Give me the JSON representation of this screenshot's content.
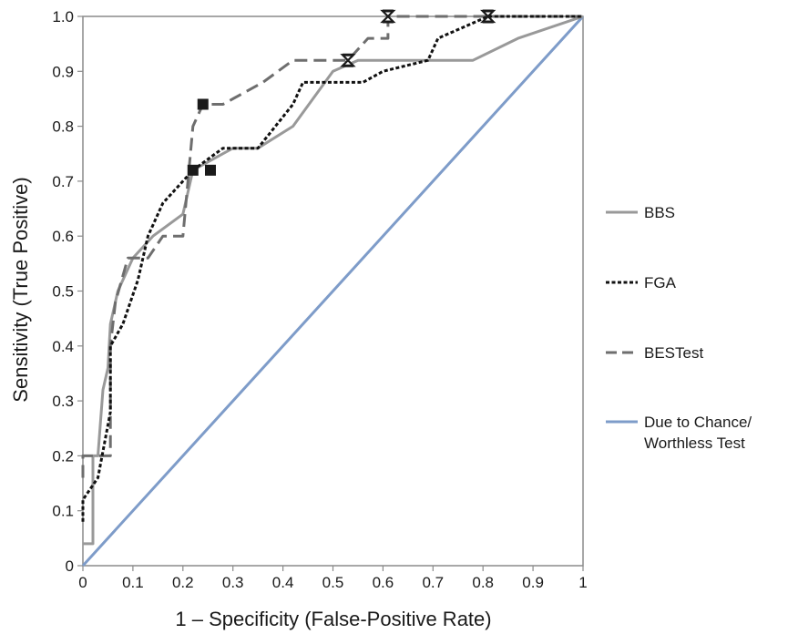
{
  "chart_data": {
    "type": "line",
    "xlabel": "1 – Specificity (False-Positive Rate)",
    "ylabel": "Sensitivity (True Positive)",
    "xlim": [
      0,
      1
    ],
    "ylim": [
      0,
      1
    ],
    "x_ticks": [
      "0",
      "0.1",
      "0.2",
      "0.3",
      "0.4",
      "0.5",
      "0.6",
      "0.7",
      "0.8",
      "0.9",
      "1"
    ],
    "y_ticks": [
      "0",
      "0.1",
      "0.2",
      "0.3",
      "0.4",
      "0.5",
      "0.6",
      "0.7",
      "0.8",
      "0.9",
      "1.0"
    ],
    "grid": false,
    "legend_position": "right",
    "series": [
      {
        "name": "BBS",
        "color": "#999999",
        "style": "solid",
        "points": [
          [
            0.0,
            0.04
          ],
          [
            0.02,
            0.04
          ],
          [
            0.02,
            0.2
          ],
          [
            0.03,
            0.2
          ],
          [
            0.04,
            0.32
          ],
          [
            0.05,
            0.36
          ],
          [
            0.055,
            0.44
          ],
          [
            0.07,
            0.5
          ],
          [
            0.1,
            0.56
          ],
          [
            0.14,
            0.6
          ],
          [
            0.2,
            0.64
          ],
          [
            0.22,
            0.72
          ],
          [
            0.3,
            0.76
          ],
          [
            0.35,
            0.76
          ],
          [
            0.42,
            0.8
          ],
          [
            0.5,
            0.9
          ],
          [
            0.55,
            0.92
          ],
          [
            0.78,
            0.92
          ],
          [
            0.87,
            0.96
          ],
          [
            1.0,
            1.0
          ]
        ]
      },
      {
        "name": "FGA",
        "color": "#111111",
        "style": "dotted",
        "points": [
          [
            0.0,
            0.08
          ],
          [
            0.0,
            0.12
          ],
          [
            0.03,
            0.16
          ],
          [
            0.055,
            0.28
          ],
          [
            0.055,
            0.4
          ],
          [
            0.08,
            0.44
          ],
          [
            0.11,
            0.52
          ],
          [
            0.13,
            0.6
          ],
          [
            0.16,
            0.66
          ],
          [
            0.2,
            0.7
          ],
          [
            0.22,
            0.72
          ],
          [
            0.28,
            0.76
          ],
          [
            0.35,
            0.76
          ],
          [
            0.42,
            0.84
          ],
          [
            0.44,
            0.88
          ],
          [
            0.56,
            0.88
          ],
          [
            0.6,
            0.9
          ],
          [
            0.69,
            0.92
          ],
          [
            0.71,
            0.96
          ],
          [
            0.81,
            1.0
          ],
          [
            1.0,
            1.0
          ]
        ]
      },
      {
        "name": "BESTest",
        "color": "#6e6e6e",
        "style": "dashed",
        "points": [
          [
            0.0,
            0.16
          ],
          [
            0.0,
            0.2
          ],
          [
            0.055,
            0.2
          ],
          [
            0.055,
            0.4
          ],
          [
            0.065,
            0.48
          ],
          [
            0.09,
            0.56
          ],
          [
            0.13,
            0.56
          ],
          [
            0.16,
            0.6
          ],
          [
            0.2,
            0.6
          ],
          [
            0.22,
            0.8
          ],
          [
            0.24,
            0.84
          ],
          [
            0.28,
            0.84
          ],
          [
            0.36,
            0.88
          ],
          [
            0.42,
            0.92
          ],
          [
            0.53,
            0.92
          ],
          [
            0.57,
            0.96
          ],
          [
            0.61,
            0.96
          ],
          [
            0.61,
            1.0
          ],
          [
            1.0,
            1.0
          ]
        ]
      },
      {
        "name": "Due to Chance/\nWorthless Test",
        "color": "#7e9cc9",
        "style": "solid",
        "points": [
          [
            0,
            0
          ],
          [
            1,
            1
          ]
        ]
      }
    ],
    "markers": [
      {
        "shape": "square",
        "x": 0.22,
        "y": 0.72
      },
      {
        "shape": "square",
        "x": 0.255,
        "y": 0.72
      },
      {
        "shape": "square",
        "x": 0.24,
        "y": 0.84
      },
      {
        "shape": "hourglass",
        "x": 0.53,
        "y": 0.92
      },
      {
        "shape": "hourglass",
        "x": 0.61,
        "y": 1.0
      },
      {
        "shape": "hourglass",
        "x": 0.81,
        "y": 1.0
      }
    ]
  },
  "legend": [
    {
      "label": "BBS"
    },
    {
      "label": "FGA"
    },
    {
      "label": "BESTest"
    },
    {
      "label_line1": "Due to Chance/",
      "label_line2": "Worthless Test"
    }
  ]
}
